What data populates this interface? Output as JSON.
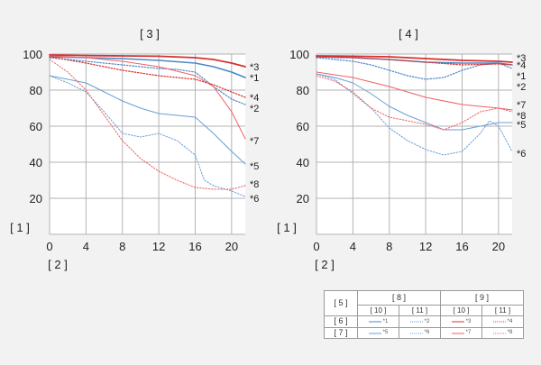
{
  "page_labels": {
    "y_label": "[ 1 ]",
    "x_label": "[ 2 ]"
  },
  "chart_data": [
    {
      "type": "line",
      "title": "[ 3 ]",
      "ylim": [
        0,
        100
      ],
      "xlim": [
        0,
        21.5
      ],
      "xticks": [
        0,
        4,
        8,
        12,
        16,
        20
      ],
      "yticks": [
        20,
        40,
        60,
        80,
        100
      ],
      "grid": true,
      "series": [
        {
          "name": "*1",
          "color": "#4a88c8",
          "style": "solid",
          "width": 1.6,
          "x": [
            0,
            4,
            8,
            12,
            16,
            18,
            20,
            21.5
          ],
          "y": [
            98.5,
            98,
            97.5,
            96.5,
            95,
            93,
            90,
            87
          ]
        },
        {
          "name": "*2",
          "color": "#4a88c8",
          "style": "dotted",
          "width": 1.2,
          "x": [
            0,
            4,
            8,
            12,
            14,
            16,
            18,
            20,
            21.5
          ],
          "y": [
            98,
            96,
            94,
            92,
            91.5,
            90,
            82,
            75,
            72
          ]
        },
        {
          "name": "*3",
          "color": "#d83030",
          "style": "solid",
          "width": 1.8,
          "x": [
            0,
            4,
            8,
            12,
            16,
            18,
            20,
            21.5
          ],
          "y": [
            99.5,
            99.2,
            99,
            98.8,
            98,
            97,
            95,
            93
          ]
        },
        {
          "name": "*4",
          "color": "#d83030",
          "style": "dotted",
          "width": 1.2,
          "x": [
            0,
            4,
            8,
            12,
            16,
            18,
            20,
            21.5
          ],
          "y": [
            98.5,
            95,
            91,
            88,
            86,
            83,
            79,
            76
          ]
        },
        {
          "name": "*5",
          "color": "#6a9fd6",
          "style": "solid",
          "width": 1.0,
          "x": [
            0,
            2,
            4,
            6,
            8,
            10,
            12,
            14,
            16,
            18,
            20,
            21.5
          ],
          "y": [
            88,
            86,
            84,
            79,
            74,
            70,
            67,
            66,
            65,
            56,
            46,
            39
          ]
        },
        {
          "name": "*6",
          "color": "#6a9fd6",
          "style": "dotted",
          "width": 1.0,
          "x": [
            0,
            2,
            4,
            6,
            8,
            10,
            12,
            14,
            16,
            17,
            18,
            20,
            21.5
          ],
          "y": [
            88,
            84,
            79,
            68,
            56,
            54,
            56,
            52,
            44,
            30,
            27,
            24,
            21
          ]
        },
        {
          "name": "*7",
          "color": "#f26060",
          "style": "solid",
          "width": 1.0,
          "x": [
            0,
            4,
            8,
            12,
            16,
            18,
            20,
            21.5
          ],
          "y": [
            99,
            98,
            96,
            93,
            88,
            82,
            68,
            53
          ]
        },
        {
          "name": "*8",
          "color": "#f26060",
          "style": "dotted",
          "width": 1.0,
          "x": [
            0,
            2,
            4,
            6,
            8,
            10,
            12,
            14,
            16,
            18,
            20,
            21.5
          ],
          "y": [
            97,
            90,
            80,
            66,
            52,
            42,
            35,
            30,
            26,
            25,
            25,
            27
          ]
        }
      ],
      "end_labels": [
        {
          "text": "*3",
          "y": 93
        },
        {
          "text": "*1",
          "y": 87
        },
        {
          "text": "*4",
          "y": 76
        },
        {
          "text": "*2",
          "y": 70
        },
        {
          "text": "*7",
          "y": 52
        },
        {
          "text": "*5",
          "y": 38
        },
        {
          "text": "*8",
          "y": 28
        },
        {
          "text": "*6",
          "y": 20
        }
      ]
    },
    {
      "type": "line",
      "title": "[ 4 ]",
      "ylim": [
        0,
        100
      ],
      "xlim": [
        0,
        21.5
      ],
      "xticks": [
        0,
        4,
        8,
        12,
        16,
        20
      ],
      "yticks": [
        20,
        40,
        60,
        80,
        100
      ],
      "grid": true,
      "series": [
        {
          "name": "*1",
          "color": "#4a88c8",
          "style": "solid",
          "width": 1.6,
          "x": [
            0,
            4,
            8,
            12,
            16,
            20,
            21.5
          ],
          "y": [
            98.5,
            98,
            97,
            95.5,
            95,
            95,
            94
          ]
        },
        {
          "name": "*2",
          "color": "#4a88c8",
          "style": "dotted",
          "width": 1.2,
          "x": [
            0,
            4,
            6,
            8,
            10,
            12,
            14,
            16,
            18,
            20,
            21.5
          ],
          "y": [
            98,
            96,
            94,
            91,
            88,
            86,
            87,
            91,
            94,
            95,
            92
          ]
        },
        {
          "name": "*3",
          "color": "#d83030",
          "style": "solid",
          "width": 1.8,
          "x": [
            0,
            4,
            8,
            12,
            16,
            20,
            21.5
          ],
          "y": [
            99,
            98.8,
            98.5,
            97.5,
            96.5,
            96,
            95.5
          ]
        },
        {
          "name": "*4",
          "color": "#d83030",
          "style": "dotted",
          "width": 1.2,
          "x": [
            0,
            4,
            8,
            12,
            16,
            20,
            21.5
          ],
          "y": [
            98.5,
            98,
            97,
            95.5,
            94,
            94.5,
            94
          ]
        },
        {
          "name": "*5",
          "color": "#6a9fd6",
          "style": "solid",
          "width": 1.0,
          "x": [
            0,
            2,
            4,
            6,
            8,
            10,
            12,
            14,
            16,
            18,
            20,
            21.5
          ],
          "y": [
            89,
            87,
            84,
            78,
            71,
            66,
            62,
            58,
            58,
            60,
            62,
            62
          ]
        },
        {
          "name": "*6",
          "color": "#6a9fd6",
          "style": "dotted",
          "width": 1.0,
          "x": [
            0,
            2,
            4,
            6,
            8,
            10,
            12,
            14,
            16,
            18,
            19,
            20,
            21.5
          ],
          "y": [
            89,
            86,
            78,
            70,
            59,
            52,
            47,
            44,
            46,
            56,
            63,
            60,
            46
          ]
        },
        {
          "name": "*7",
          "color": "#f26060",
          "style": "solid",
          "width": 1.0,
          "x": [
            0,
            4,
            8,
            12,
            16,
            20,
            21.5
          ],
          "y": [
            90,
            87,
            82,
            76,
            72,
            70,
            69
          ]
        },
        {
          "name": "*8",
          "color": "#f26060",
          "style": "dotted",
          "width": 1.0,
          "x": [
            0,
            2,
            4,
            6,
            8,
            10,
            12,
            14,
            16,
            18,
            20,
            21.5
          ],
          "y": [
            88,
            85,
            79,
            70,
            65,
            63,
            61,
            58,
            62,
            68,
            70,
            68
          ]
        }
      ],
      "end_labels": [
        {
          "text": "*3",
          "y": 98
        },
        {
          "text": "*4",
          "y": 94
        },
        {
          "text": "*1",
          "y": 88
        },
        {
          "text": "*2",
          "y": 82
        },
        {
          "text": "*7",
          "y": 72
        },
        {
          "text": "*8",
          "y": 66
        },
        {
          "text": "*5",
          "y": 61
        },
        {
          "text": "*6",
          "y": 45
        }
      ]
    }
  ],
  "legend": {
    "corner": "[ 5 ]",
    "group_headers": [
      "[ 8 ]",
      "[ 9 ]"
    ],
    "sub_headers": [
      "[ 10 ]",
      "[ 11 ]",
      "[ 10 ]",
      "[ 11 ]"
    ],
    "rows": [
      {
        "label": "[ 6 ]",
        "items": [
          {
            "name": "*1",
            "color": "#4a88c8",
            "style": "solid"
          },
          {
            "name": "*2",
            "color": "#4a88c8",
            "style": "dotted"
          },
          {
            "name": "*3",
            "color": "#d83030",
            "style": "solid"
          },
          {
            "name": "*4",
            "color": "#d83030",
            "style": "dotted"
          }
        ]
      },
      {
        "label": "[ 7 ]",
        "items": [
          {
            "name": "*5",
            "color": "#6a9fd6",
            "style": "solid"
          },
          {
            "name": "*6",
            "color": "#6a9fd6",
            "style": "dotted"
          },
          {
            "name": "*7",
            "color": "#f26060",
            "style": "solid"
          },
          {
            "name": "*8",
            "color": "#f26060",
            "style": "dotted"
          }
        ]
      }
    ]
  }
}
